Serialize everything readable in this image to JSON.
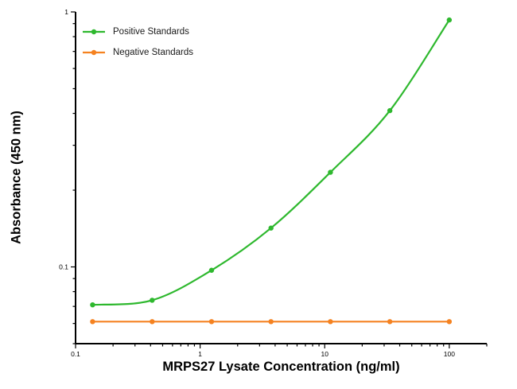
{
  "chart_data": {
    "type": "line",
    "title": "",
    "xlabel": "MRPS27 Lysate Concentration (ng/ml)",
    "ylabel": "Absorbance (450 nm)",
    "xscale": "log",
    "yscale": "log",
    "xlim": [
      0.1,
      200
    ],
    "ylim": [
      0.05,
      1
    ],
    "grid": false,
    "legend_position": "top-left",
    "x_major_ticks": [
      0.1,
      1,
      10,
      100
    ],
    "x_tick_labels": [
      "0.1",
      "1",
      "10",
      "100"
    ],
    "y_major_ticks": [
      1,
      0.1
    ],
    "y_tick_labels": [
      "1",
      "0.1"
    ],
    "x": [
      0.137,
      0.412,
      1.235,
      3.704,
      11.111,
      33.333,
      100
    ],
    "series": [
      {
        "name": "Positive Standards",
        "color": "#2eb82e",
        "marker": "circle",
        "smooth": true,
        "values": [
          0.071,
          0.074,
          0.097,
          0.142,
          0.235,
          0.41,
          0.93
        ]
      },
      {
        "name": "Negative Standards",
        "color": "#f58220",
        "marker": "circle",
        "smooth": false,
        "values": [
          0.061,
          0.061,
          0.061,
          0.061,
          0.061,
          0.061,
          0.061
        ]
      }
    ],
    "axis_color": "#000000",
    "tick_label_color": "#000000"
  }
}
